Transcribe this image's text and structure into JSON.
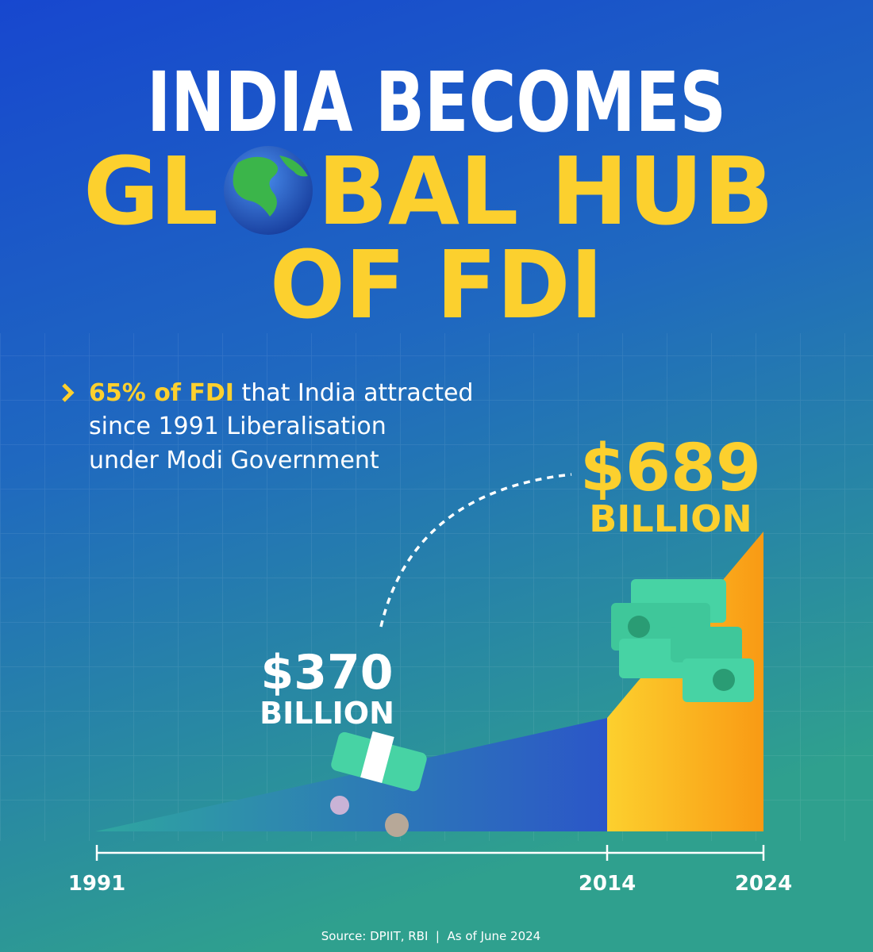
{
  "header": {
    "line1": "INDIA BECOMES",
    "line2_left": "GL",
    "line2_right": "BAL HUB",
    "line3": "OF FDI"
  },
  "bullet": {
    "highlight": "65% of FDI",
    "lines": [
      " that India attracted",
      "since 1991 Liberalisation",
      "under Modi Government"
    ]
  },
  "figures": [
    {
      "amount": "$370",
      "unit": "BILLION"
    },
    {
      "amount": "$689",
      "unit": "BILLION"
    }
  ],
  "timeline": [
    "1991",
    "2014",
    "2024"
  ],
  "source": "Source: DPIIT, RBI  |  As of June 2024"
}
